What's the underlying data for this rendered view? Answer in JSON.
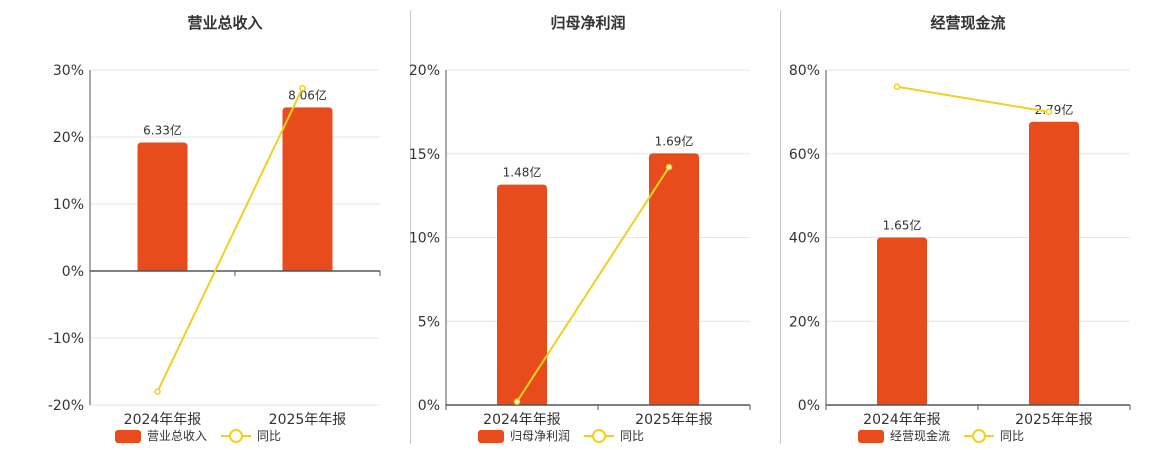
{
  "colors": {
    "bar": "#e84c1c",
    "line": "#f0d020",
    "grid": "#e6e6e6",
    "axis": "#555555",
    "text": "#333333"
  },
  "chart_data": [
    {
      "type": "bar",
      "title": "营业总收入",
      "categories": [
        "2024年年报",
        "2025年年报"
      ],
      "series": [
        {
          "name": "营业总收入",
          "type": "bar",
          "values": [
            6.33,
            8.06
          ],
          "labels": [
            "6.33亿",
            "8.06亿"
          ]
        },
        {
          "name": "同比",
          "type": "line",
          "values": [
            -18,
            27.3
          ]
        }
      ],
      "ylim": [
        -20,
        30
      ],
      "yticks": [
        "-20%",
        "-10%",
        "0%",
        "10%",
        "20%",
        "30%"
      ],
      "ytick_values": [
        -20,
        -10,
        0,
        10,
        20,
        30
      ],
      "legend": [
        "营业总收入",
        "同比"
      ]
    },
    {
      "type": "bar",
      "title": "归母净利润",
      "categories": [
        "2024年年报",
        "2025年年报"
      ],
      "series": [
        {
          "name": "归母净利润",
          "type": "bar",
          "values": [
            1.48,
            1.69
          ],
          "labels": [
            "1.48亿",
            "1.69亿"
          ]
        },
        {
          "name": "同比",
          "type": "line",
          "values": [
            0.2,
            14.2
          ]
        }
      ],
      "ylim": [
        0,
        20
      ],
      "yticks": [
        "0%",
        "5%",
        "10%",
        "15%",
        "20%"
      ],
      "ytick_values": [
        0,
        5,
        10,
        15,
        20
      ],
      "legend": [
        "归母净利润",
        "同比"
      ]
    },
    {
      "type": "bar",
      "title": "经营现金流",
      "categories": [
        "2024年年报",
        "2025年年报"
      ],
      "series": [
        {
          "name": "经营现金流",
          "type": "bar",
          "values": [
            1.65,
            2.79
          ],
          "labels": [
            "1.65亿",
            "2.79亿"
          ]
        },
        {
          "name": "同比",
          "type": "line",
          "values": [
            76,
            70
          ]
        }
      ],
      "ylim": [
        0,
        80
      ],
      "yticks": [
        "0%",
        "20%",
        "40%",
        "60%",
        "80%"
      ],
      "ytick_values": [
        0,
        20,
        40,
        60,
        80
      ],
      "legend": [
        "经营现金流",
        "同比"
      ]
    }
  ]
}
